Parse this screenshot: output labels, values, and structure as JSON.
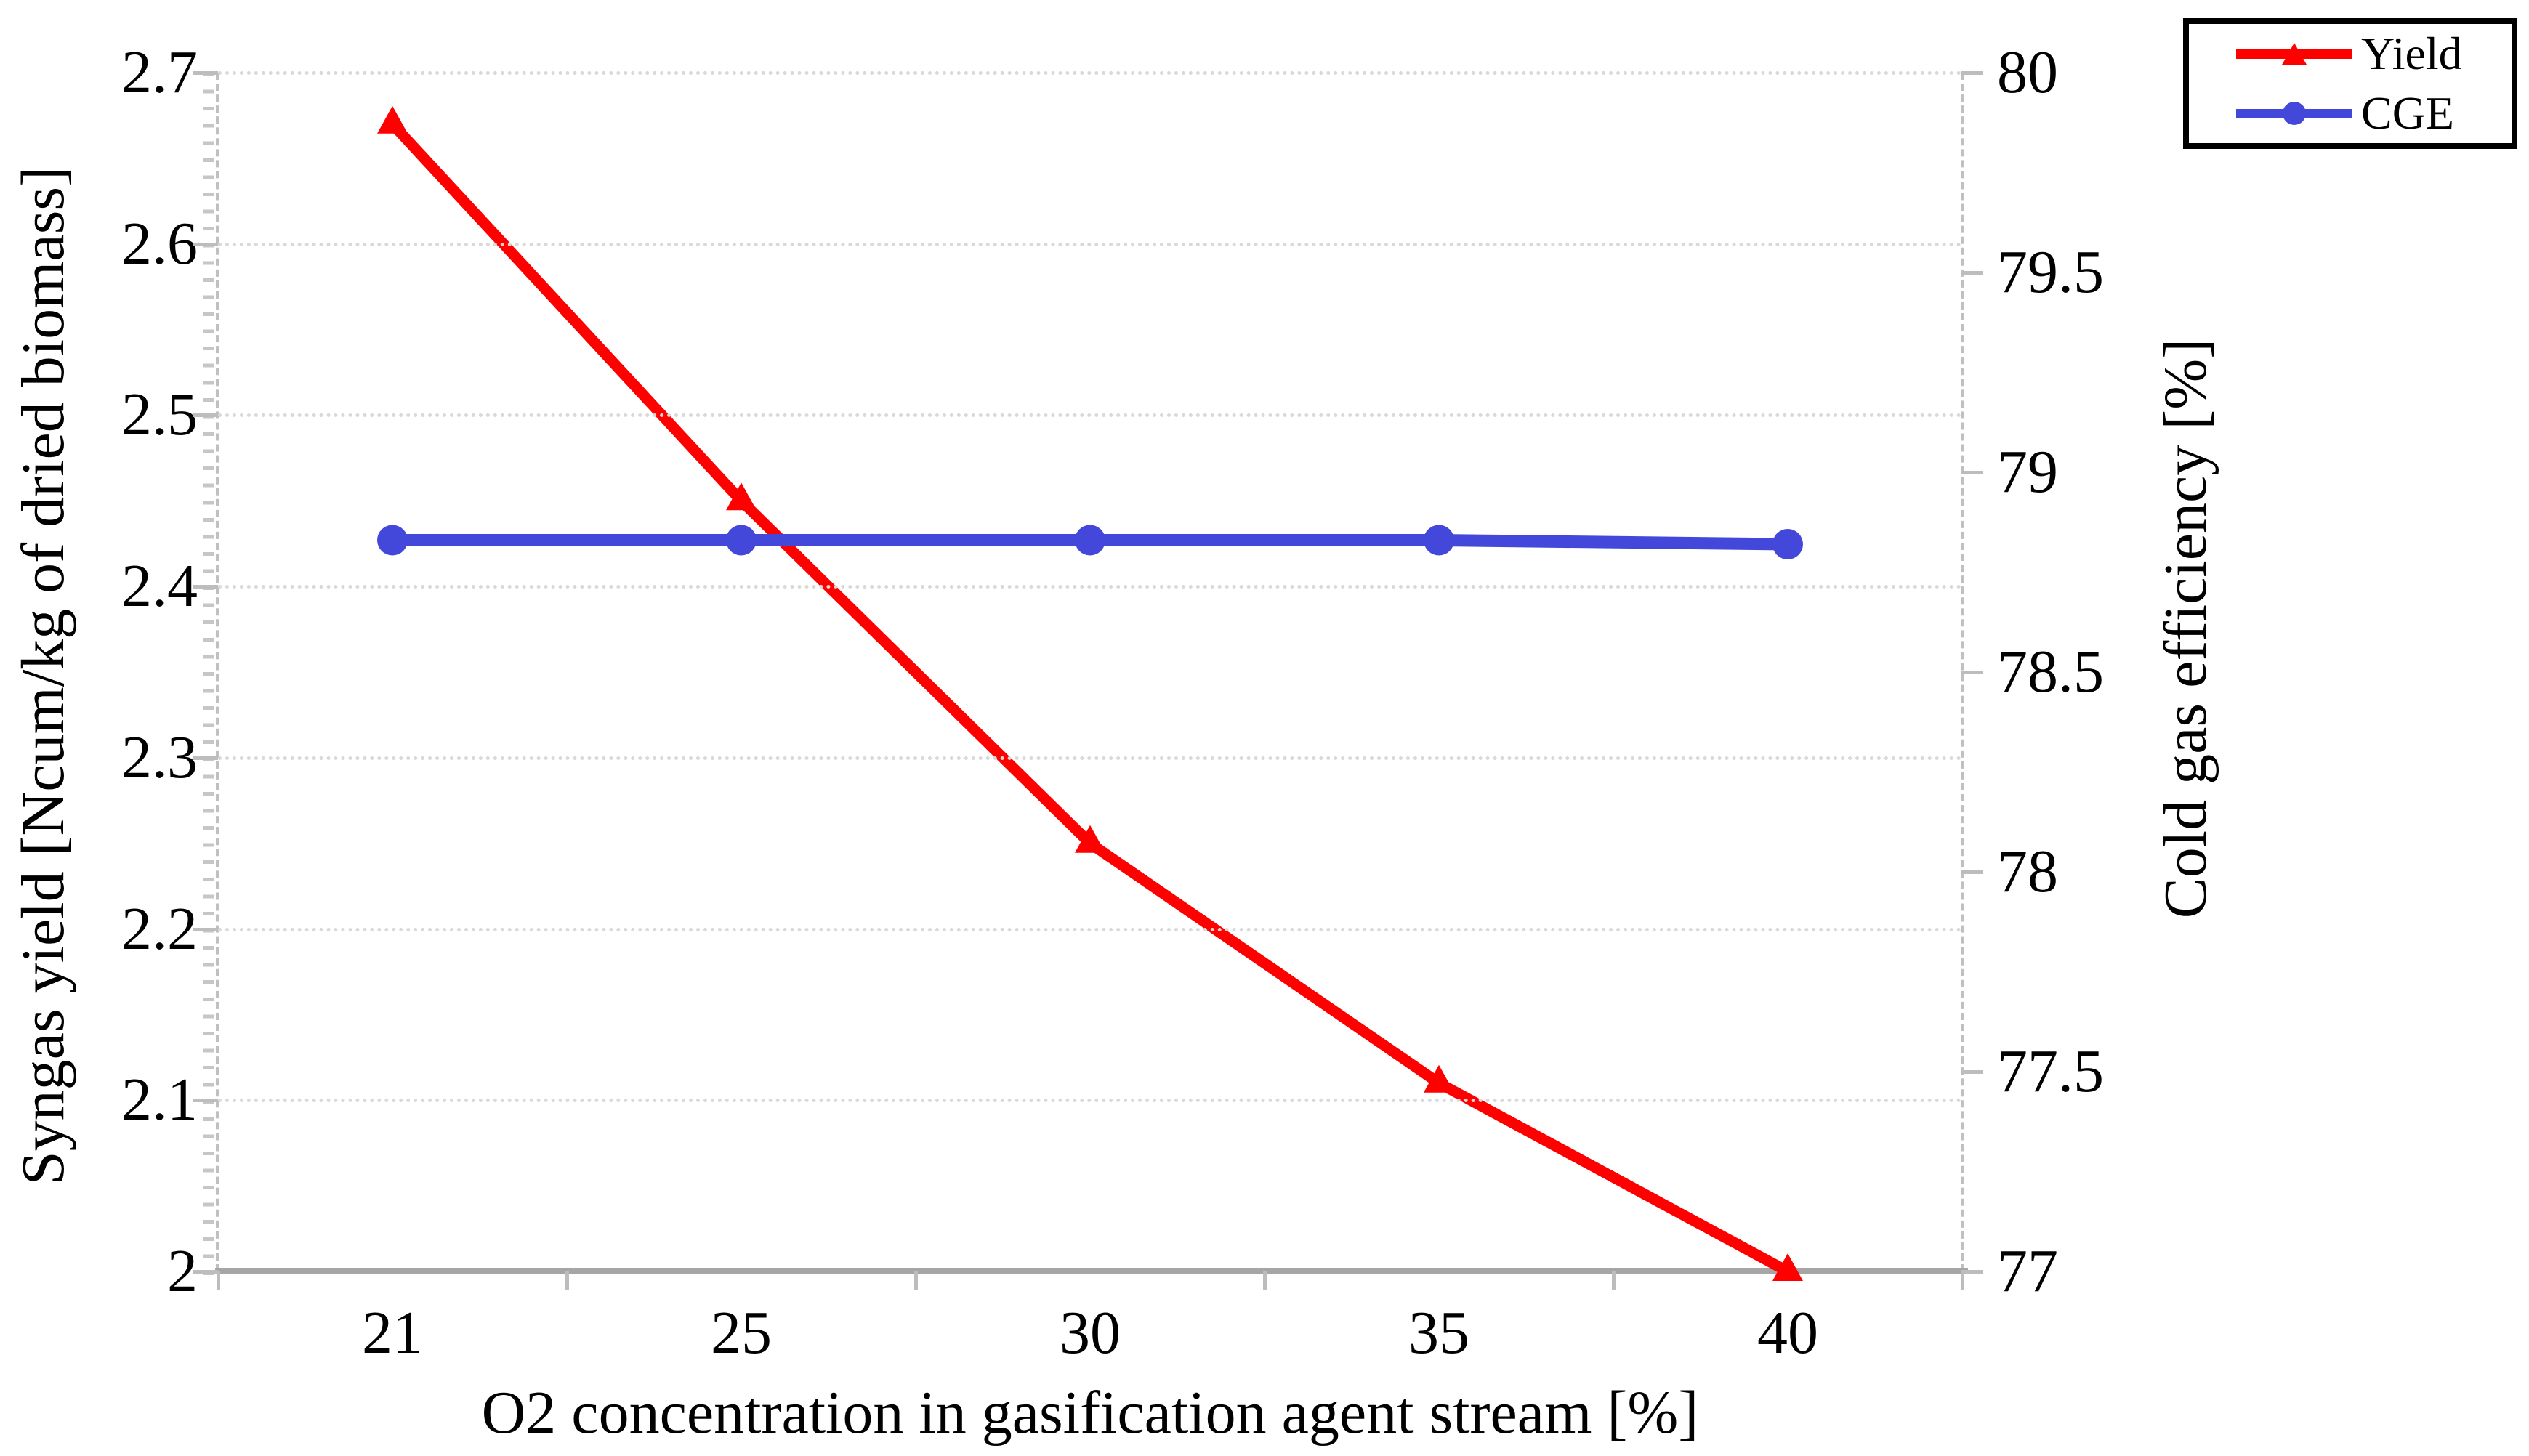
{
  "chart_data": {
    "type": "line",
    "title": "",
    "x_categories": [
      "21",
      "25",
      "30",
      "35",
      "40"
    ],
    "xlabel": "O2 concentration in gasification agent stream [%]",
    "left_axis": {
      "label": "Syngas yield [Ncum/kg of dried biomass]",
      "min": 2.0,
      "max": 2.7,
      "tick_labels": [
        "2.7",
        "2.6",
        "2.5",
        "2.4",
        "2.3",
        "2.2",
        "2.1",
        "2"
      ]
    },
    "right_axis": {
      "label": "Cold gas efficiency [%]",
      "min": 77,
      "max": 80,
      "tick_labels": [
        "80",
        "79.5",
        "79",
        "78.5",
        "78",
        "77.5",
        "77"
      ]
    },
    "series": [
      {
        "name": "Yield",
        "axis": "left",
        "color": "#ff0000",
        "marker": "triangle",
        "values": [
          2.67,
          2.45,
          2.25,
          2.11,
          2.0
        ]
      },
      {
        "name": "CGE",
        "axis": "right",
        "color": "#4348db",
        "marker": "circle",
        "values": [
          78.83,
          78.83,
          78.83,
          78.83,
          78.82
        ]
      }
    ],
    "legend": {
      "position": "top-right",
      "entries": [
        "Yield",
        "CGE"
      ]
    },
    "grid": {
      "horizontal": true,
      "style": "dotted",
      "color": "#d9d9d9"
    },
    "colors": {
      "axis_line": "#a6a6a6",
      "plot_border": "#c0c0c0",
      "tick": "#bdbdbd",
      "text": "#000000"
    }
  }
}
